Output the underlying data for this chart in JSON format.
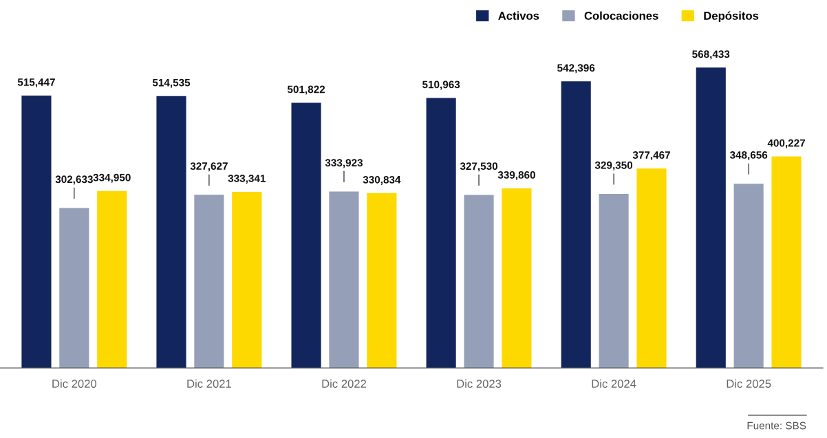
{
  "chart_data": {
    "type": "bar",
    "categories": [
      "Dic 2020",
      "Dic 2021",
      "Dic 2022",
      "Dic 2023",
      "Dic 2024",
      "Dic 2025"
    ],
    "series": [
      {
        "name": "Activos",
        "color": "#12255c",
        "values": [
          515447,
          514535,
          501822,
          510963,
          542396,
          568433
        ],
        "value_labels": [
          "515,447",
          "514,535",
          "501,822",
          "510,963",
          "542,396",
          "568,433"
        ]
      },
      {
        "name": "Colocaciones",
        "color": "#95a0b8",
        "values": [
          302633,
          327627,
          333923,
          327530,
          329350,
          348656
        ],
        "value_labels": [
          "302,633",
          "327,627",
          "333,923",
          "327,530",
          "329,350",
          "348,656"
        ]
      },
      {
        "name": "Depósitos",
        "color": "#fdd900",
        "values": [
          334950,
          333341,
          330834,
          339860,
          377467,
          400227
        ],
        "value_labels": [
          "334,950",
          "333,341",
          "330,834",
          "339,860",
          "377,467",
          "400,227"
        ]
      }
    ],
    "legend": "top right",
    "grid": false,
    "annotations": [
      "Fuente: SBS"
    ]
  }
}
